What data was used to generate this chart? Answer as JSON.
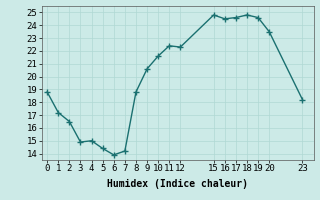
{
  "x": [
    0,
    1,
    2,
    3,
    4,
    5,
    6,
    7,
    8,
    9,
    10,
    11,
    12,
    15,
    16,
    17,
    18,
    19,
    20,
    23
  ],
  "y": [
    18.8,
    17.2,
    16.5,
    14.9,
    15.0,
    14.4,
    13.9,
    14.2,
    18.8,
    20.6,
    21.6,
    22.4,
    22.3,
    24.8,
    24.5,
    24.6,
    24.8,
    24.6,
    23.5,
    18.2
  ],
  "line_color": "#1a7070",
  "marker": "+",
  "marker_size": 4,
  "marker_lw": 1.0,
  "line_width": 1.0,
  "bg_color": "#cceae7",
  "grid_color": "#b0d8d4",
  "xlabel": "Humidex (Indice chaleur)",
  "xlabel_fontsize": 7,
  "ylabel_ticks": [
    14,
    15,
    16,
    17,
    18,
    19,
    20,
    21,
    22,
    23,
    24,
    25
  ],
  "xticks": [
    0,
    1,
    2,
    3,
    4,
    5,
    6,
    7,
    8,
    9,
    10,
    11,
    12,
    15,
    16,
    17,
    18,
    19,
    20,
    23
  ],
  "xlim": [
    -0.5,
    24.0
  ],
  "ylim": [
    13.5,
    25.5
  ],
  "tick_fontsize": 6.5
}
